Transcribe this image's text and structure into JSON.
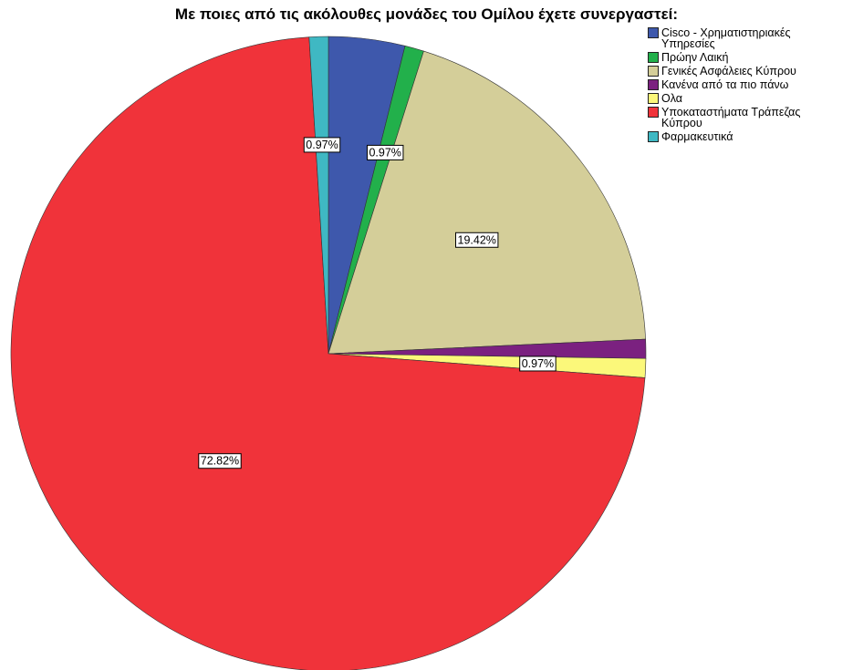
{
  "chart_data": {
    "type": "pie",
    "title": "Με ποιες από τις ακόλουθες μονάδες του Ομίλου έχετε συνεργαστεί:",
    "categories": [
      "Cisco - Χρηματιστηριακές Υπηρεσίες",
      "Πρώην Λαική",
      "Γενικές Ασφάλειες Κύπρου",
      "Κανένα από τα πιο πάνω",
      "Ολα",
      "Υποκαταστήματα Τράπεζας Κύπρου",
      "Φαρμακευτικά"
    ],
    "values": [
      3.88,
      0.97,
      19.42,
      0.97,
      0.97,
      72.82,
      0.97
    ],
    "value_labels": [
      null,
      "0.97%",
      "19.42%",
      null,
      "0.97%",
      "72.82%",
      "0.97%"
    ],
    "colors": [
      "#3e58ac",
      "#22b04b",
      "#d4ce99",
      "#7b2180",
      "#fbf87a",
      "#f0333a",
      "#3fb8c3"
    ],
    "legend": "top-right"
  }
}
